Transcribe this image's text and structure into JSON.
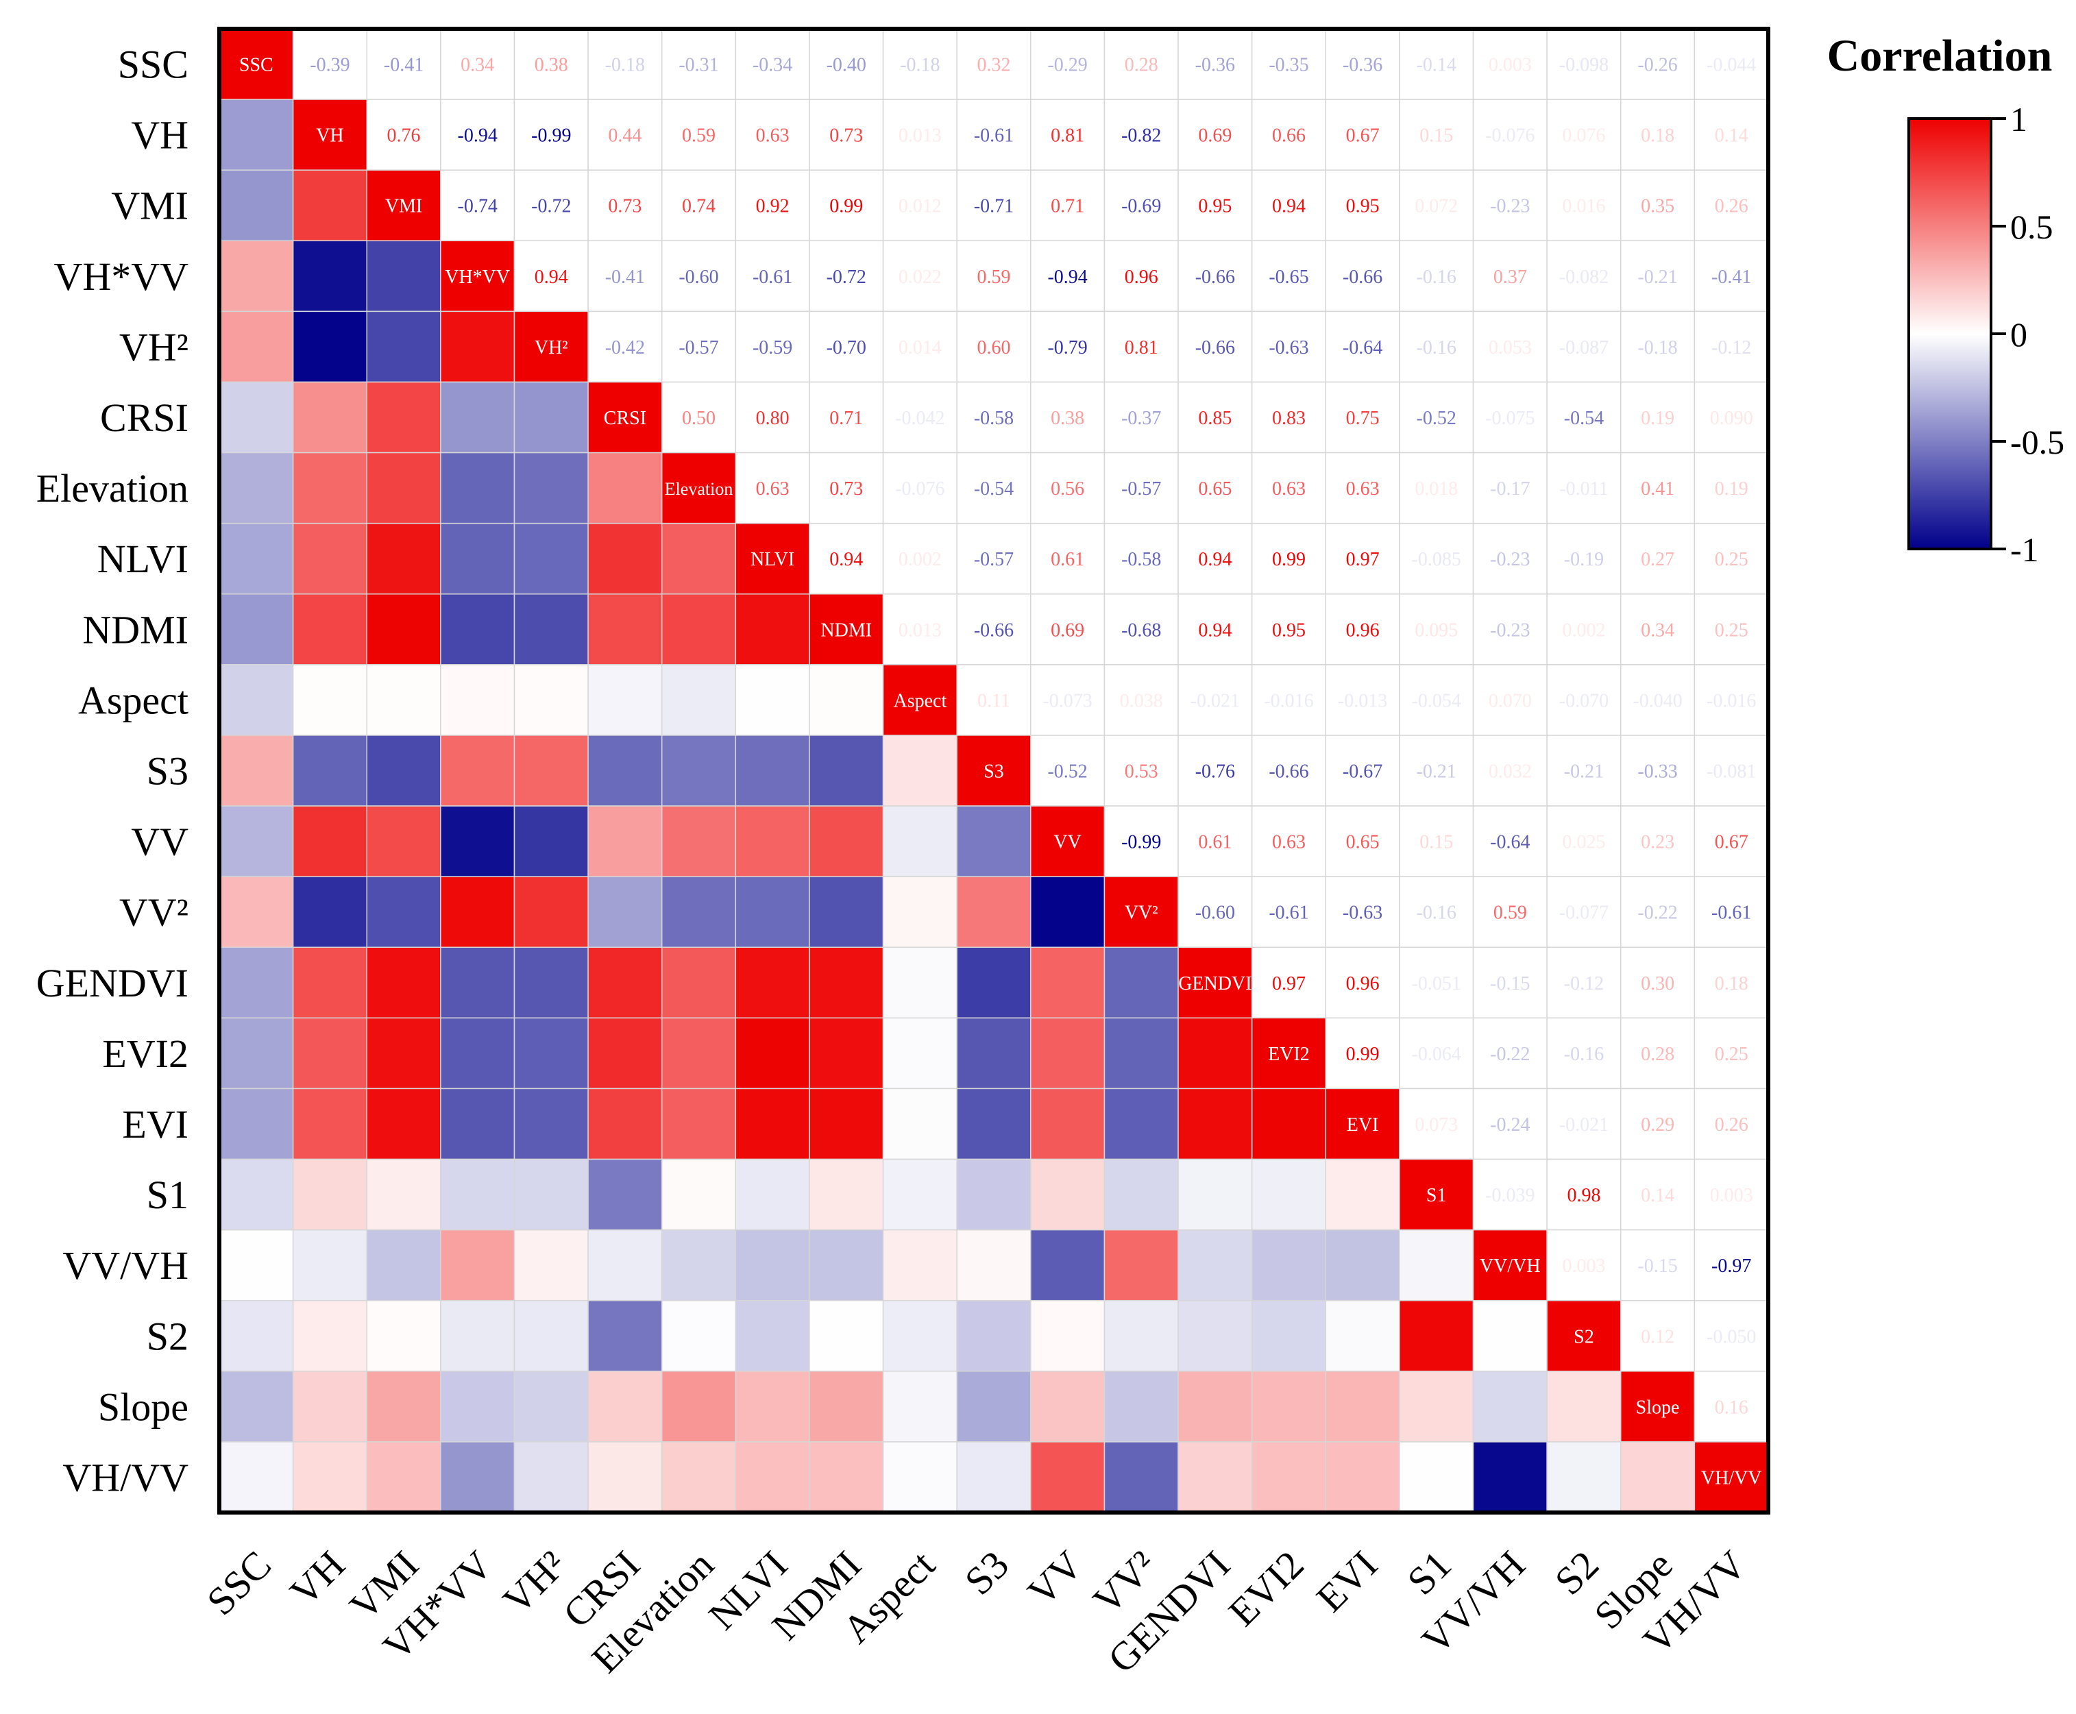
{
  "chart_data": {
    "type": "heatmap",
    "title": "Correlation",
    "variables": [
      "SSC",
      "VH",
      "VMI",
      "VH*VV",
      "VH²",
      "CRSI",
      "Elevation",
      "NLVI",
      "NDMI",
      "Aspect",
      "S3",
      "VV",
      "VV²",
      "GENDVI",
      "EVI2",
      "EVI",
      "S1",
      "VV/VH",
      "S2",
      "Slope",
      "VH/VV"
    ],
    "upper_triangle_labels": [
      [
        "SSC",
        "-0.39",
        "-0.41",
        "0.34",
        "0.38",
        "-0.18",
        "-0.31",
        "-0.34",
        "-0.40",
        "-0.18",
        "0.32",
        "-0.29",
        "0.28",
        "-0.36",
        "-0.35",
        "-0.36",
        "-0.14",
        "0.003",
        "-0.098",
        "-0.26",
        "-0.044"
      ],
      [
        "",
        "VH",
        "0.76",
        "-0.94",
        "-0.99",
        "0.44",
        "0.59",
        "0.63",
        "0.73",
        "0.013",
        "-0.61",
        "0.81",
        "-0.82",
        "0.69",
        "0.66",
        "0.67",
        "0.15",
        "-0.076",
        "0.076",
        "0.18",
        "0.14"
      ],
      [
        "",
        "",
        "VMI",
        "-0.74",
        "-0.72",
        "0.73",
        "0.74",
        "0.92",
        "0.99",
        "0.012",
        "-0.71",
        "0.71",
        "-0.69",
        "0.95",
        "0.94",
        "0.95",
        "0.072",
        "-0.23",
        "0.016",
        "0.35",
        "0.26"
      ],
      [
        "",
        "",
        "",
        "VH*VV",
        "0.94",
        "-0.41",
        "-0.60",
        "-0.61",
        "-0.72",
        "0.022",
        "0.59",
        "-0.94",
        "0.96",
        "-0.66",
        "-0.65",
        "-0.66",
        "-0.16",
        "0.37",
        "-0.082",
        "-0.21",
        "-0.41"
      ],
      [
        "",
        "",
        "",
        "",
        "VH²",
        "-0.42",
        "-0.57",
        "-0.59",
        "-0.70",
        "0.014",
        "0.60",
        "-0.79",
        "0.81",
        "-0.66",
        "-0.63",
        "-0.64",
        "-0.16",
        "0.053",
        "-0.087",
        "-0.18",
        "-0.12"
      ],
      [
        "",
        "",
        "",
        "",
        "",
        "CRSI",
        "0.50",
        "0.80",
        "0.71",
        "-0.042",
        "-0.58",
        "0.38",
        "-0.37",
        "0.85",
        "0.83",
        "0.75",
        "-0.52",
        "-0.075",
        "-0.54",
        "0.19",
        "0.090"
      ],
      [
        "",
        "",
        "",
        "",
        "",
        "",
        "Elevation",
        "0.63",
        "0.73",
        "-0.076",
        "-0.54",
        "0.56",
        "-0.57",
        "0.65",
        "0.63",
        "0.63",
        "0.018",
        "-0.17",
        "-0.011",
        "0.41",
        "0.19"
      ],
      [
        "",
        "",
        "",
        "",
        "",
        "",
        "",
        "NLVI",
        "0.94",
        "0.002",
        "-0.57",
        "0.61",
        "-0.58",
        "0.94",
        "0.99",
        "0.97",
        "-0.085",
        "-0.23",
        "-0.19",
        "0.27",
        "0.25"
      ],
      [
        "",
        "",
        "",
        "",
        "",
        "",
        "",
        "",
        "NDMI",
        "0.013",
        "-0.66",
        "0.69",
        "-0.68",
        "0.94",
        "0.95",
        "0.96",
        "0.095",
        "-0.23",
        "0.002",
        "0.34",
        "0.25"
      ],
      [
        "",
        "",
        "",
        "",
        "",
        "",
        "",
        "",
        "",
        "Aspect",
        "0.11",
        "-0.073",
        "0.038",
        "-0.021",
        "-0.016",
        "-0.013",
        "-0.054",
        "0.070",
        "-0.070",
        "-0.040",
        "-0.016"
      ],
      [
        "",
        "",
        "",
        "",
        "",
        "",
        "",
        "",
        "",
        "",
        "S3",
        "-0.52",
        "0.53",
        "-0.76",
        "-0.66",
        "-0.67",
        "-0.21",
        "0.032",
        "-0.21",
        "-0.33",
        "-0.081"
      ],
      [
        "",
        "",
        "",
        "",
        "",
        "",
        "",
        "",
        "",
        "",
        "",
        "VV",
        "-0.99",
        "0.61",
        "0.63",
        "0.65",
        "0.15",
        "-0.64",
        "0.025",
        "0.23",
        "0.67"
      ],
      [
        "",
        "",
        "",
        "",
        "",
        "",
        "",
        "",
        "",
        "",
        "",
        "",
        "VV²",
        "-0.60",
        "-0.61",
        "-0.63",
        "-0.16",
        "0.59",
        "-0.077",
        "-0.22",
        "-0.61"
      ],
      [
        "",
        "",
        "",
        "",
        "",
        "",
        "",
        "",
        "",
        "",
        "",
        "",
        "",
        "GENDVI",
        "0.97",
        "0.96",
        "-0.051",
        "-0.15",
        "-0.12",
        "0.30",
        "0.18"
      ],
      [
        "",
        "",
        "",
        "",
        "",
        "",
        "",
        "",
        "",
        "",
        "",
        "",
        "",
        "",
        "EVI2",
        "0.99",
        "-0.064",
        "-0.22",
        "-0.16",
        "0.28",
        "0.25"
      ],
      [
        "",
        "",
        "",
        "",
        "",
        "",
        "",
        "",
        "",
        "",
        "",
        "",
        "",
        "",
        "",
        "EVI",
        "0.073",
        "-0.24",
        "-0.021",
        "0.29",
        "0.26"
      ],
      [
        "",
        "",
        "",
        "",
        "",
        "",
        "",
        "",
        "",
        "",
        "",
        "",
        "",
        "",
        "",
        "",
        "S1",
        "-0.039",
        "0.98",
        "0.14",
        "0.003"
      ],
      [
        "",
        "",
        "",
        "",
        "",
        "",
        "",
        "",
        "",
        "",
        "",
        "",
        "",
        "",
        "",
        "",
        "",
        "VV/VH",
        "0.003",
        "-0.15",
        "-0.97"
      ],
      [
        "",
        "",
        "",
        "",
        "",
        "",
        "",
        "",
        "",
        "",
        "",
        "",
        "",
        "",
        "",
        "",
        "",
        "",
        "S2",
        "0.12",
        "-0.050"
      ],
      [
        "",
        "",
        "",
        "",
        "",
        "",
        "",
        "",
        "",
        "",
        "",
        "",
        "",
        "",
        "",
        "",
        "",
        "",
        "",
        "Slope",
        "0.16"
      ],
      [
        "",
        "",
        "",
        "",
        "",
        "",
        "",
        "",
        "",
        "",
        "",
        "",
        "",
        "",
        "",
        "",
        "",
        "",
        "",
        "",
        "VH/VV"
      ]
    ],
    "colorbar": {
      "min": -1,
      "max": 1,
      "ticks": [
        "1",
        "0.5",
        "0",
        "-0.5",
        "-1"
      ]
    },
    "colors": {
      "positive": "#ee0000",
      "zero": "#ffffff",
      "negative": "#00008b"
    }
  }
}
